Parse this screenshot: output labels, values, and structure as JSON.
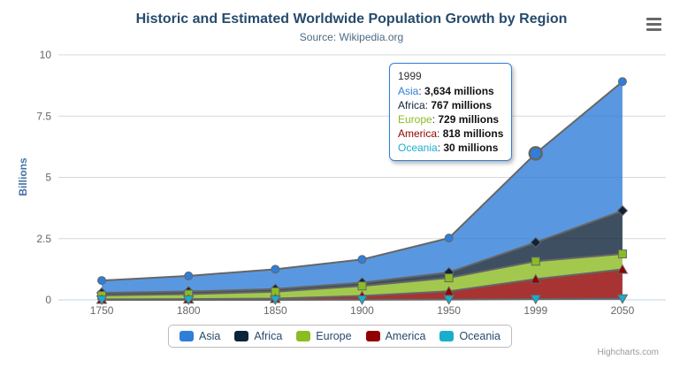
{
  "header": {
    "title": "Historic and Estimated Worldwide Population Growth by Region",
    "subtitle": "Source: Wikipedia.org"
  },
  "chart_data": {
    "type": "area",
    "stacking": "normal",
    "title": "Historic and Estimated Worldwide Population Growth by Region",
    "subtitle": "Source: Wikipedia.org",
    "categories": [
      "1750",
      "1800",
      "1850",
      "1900",
      "1950",
      "1999",
      "2050"
    ],
    "series": [
      {
        "name": "Asia",
        "color": "#2f7ed8",
        "marker": "circle",
        "values": [
          502,
          635,
          809,
          947,
          1402,
          3634,
          5268
        ]
      },
      {
        "name": "Africa",
        "color": "#0d233a",
        "marker": "diamond",
        "values": [
          106,
          107,
          111,
          133,
          221,
          767,
          1766
        ]
      },
      {
        "name": "Europe",
        "color": "#8bbc21",
        "marker": "square",
        "values": [
          163,
          203,
          276,
          408,
          547,
          729,
          628
        ]
      },
      {
        "name": "America",
        "color": "#910000",
        "marker": "triangle",
        "values": [
          18,
          31,
          54,
          156,
          339,
          818,
          1201
        ]
      },
      {
        "name": "Oceania",
        "color": "#1aadce",
        "marker": "triangle-down",
        "values": [
          2,
          2,
          2,
          6,
          13,
          30,
          46
        ]
      }
    ],
    "values_unit": "millions",
    "xlabel": "",
    "ylabel": "Billions",
    "ylim": [
      0,
      10
    ],
    "yticks": [
      0,
      2.5,
      5,
      7.5,
      10
    ],
    "grid": true,
    "legend_position": "bottom",
    "line_color": "#666666",
    "fill_opacity": 0.8,
    "grid_color": "#d8d8d8",
    "axis_line_color": "#c0d0e0",
    "axis_label_color": "#666666",
    "axis_title_color": "#4572a7",
    "hover": {
      "series": "Asia",
      "category": "1999"
    }
  },
  "tooltip": {
    "header": "1999",
    "separator": ": ",
    "border_color": "#2f7ed8",
    "rows": [
      {
        "label": "Asia",
        "value": "3,634 millions"
      },
      {
        "label": "Africa",
        "value": "767 millions"
      },
      {
        "label": "Europe",
        "value": "729 millions"
      },
      {
        "label": "America",
        "value": "818 millions"
      },
      {
        "label": "Oceania",
        "value": "30 millions"
      }
    ]
  },
  "legend": {
    "items": [
      "Asia",
      "Africa",
      "Europe",
      "America",
      "Oceania"
    ]
  },
  "credits": {
    "label": "Highcharts.com"
  }
}
